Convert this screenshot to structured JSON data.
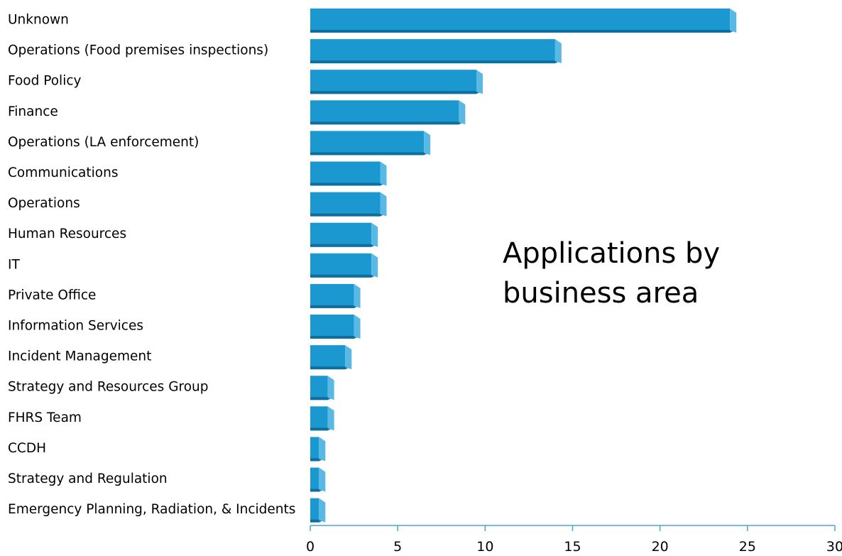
{
  "chart_data": {
    "type": "bar",
    "orientation": "horizontal",
    "title_lines": [
      "Applications by",
      "business area"
    ],
    "categories": [
      "Unknown",
      "Operations (Food premises inspections)",
      "Food Policy",
      "Finance",
      "Operations (LA enforcement)",
      "Communications",
      "Operations",
      "Human Resources",
      "IT",
      "Private Office",
      "Information Services",
      "Incident Management",
      "Strategy and Resources Group",
      "FHRS Team",
      "CCDH",
      "Strategy and Regulation",
      "Emergency Planning, Radiation, & Incidents"
    ],
    "values": [
      24,
      14,
      9.5,
      8.5,
      6.5,
      4,
      4,
      3.5,
      3.5,
      2.5,
      2.5,
      2,
      1,
      1,
      0.5,
      0.5,
      0.5
    ],
    "xlim": [
      0,
      30
    ],
    "x_ticks": [
      0,
      5,
      10,
      15,
      20,
      25,
      30
    ],
    "xlabel": "",
    "ylabel": "",
    "grid": false,
    "legend": "none",
    "colors": {
      "bar_front": "#1b98d0",
      "bar_side": "#5ab9e4",
      "bar_bottom": "#0e6f9e",
      "axis": "#4fa3d3"
    }
  }
}
